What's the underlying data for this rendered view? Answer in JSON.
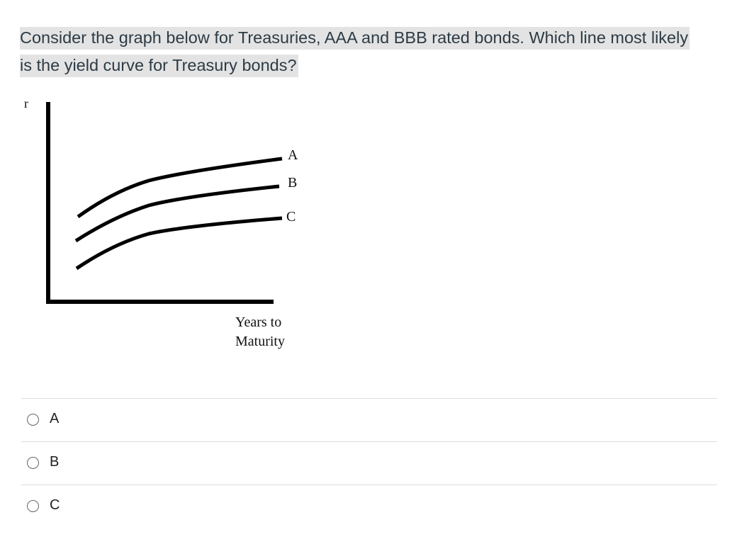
{
  "question": "Consider the graph below for Treasuries, AAA and BBB rated bonds. Which line most likely is the yield curve for Treasury bonds?",
  "figure": {
    "y_axis_label": "r",
    "x_axis_label": "Years to Maturity",
    "lines": [
      {
        "label": "A"
      },
      {
        "label": "B"
      },
      {
        "label": "C"
      }
    ]
  },
  "options": [
    "A",
    "B",
    "C"
  ]
}
